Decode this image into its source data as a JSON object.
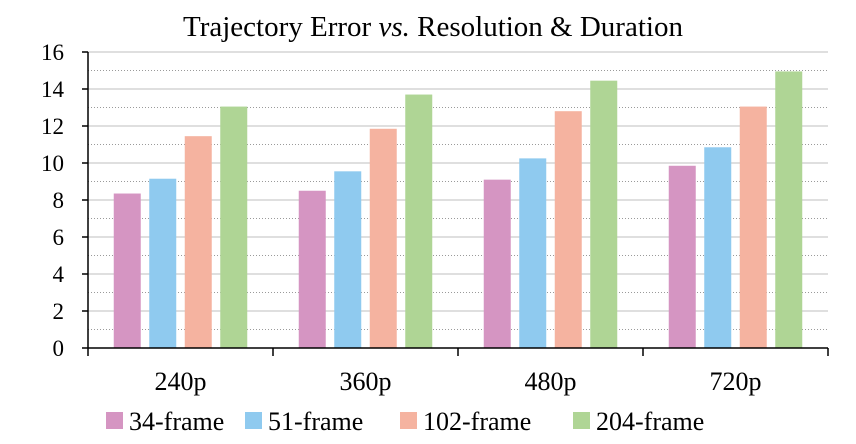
{
  "chart_data": {
    "type": "bar",
    "title_prefix": "Trajectory Error ",
    "title_italic": "vs.",
    "title_suffix": " Resolution & Duration",
    "categories": [
      "240p",
      "360p",
      "480p",
      "720p"
    ],
    "series": [
      {
        "name": "34-frame",
        "color": "#d595c2",
        "values": [
          8.35,
          8.5,
          9.1,
          9.85
        ]
      },
      {
        "name": "51-frame",
        "color": "#8fcaef",
        "values": [
          9.15,
          9.55,
          10.25,
          10.85
        ]
      },
      {
        "name": "102-frame",
        "color": "#f5b3a0",
        "values": [
          11.45,
          11.85,
          12.8,
          13.05
        ]
      },
      {
        "name": "204-frame",
        "color": "#afd595",
        "values": [
          13.05,
          13.7,
          14.45,
          14.95
        ]
      }
    ],
    "yticks": [
      0,
      2,
      4,
      6,
      8,
      10,
      12,
      14,
      16
    ],
    "ylim": [
      0,
      16
    ],
    "minor_grid_step": 1,
    "grid": true,
    "legend_position": "bottom"
  }
}
